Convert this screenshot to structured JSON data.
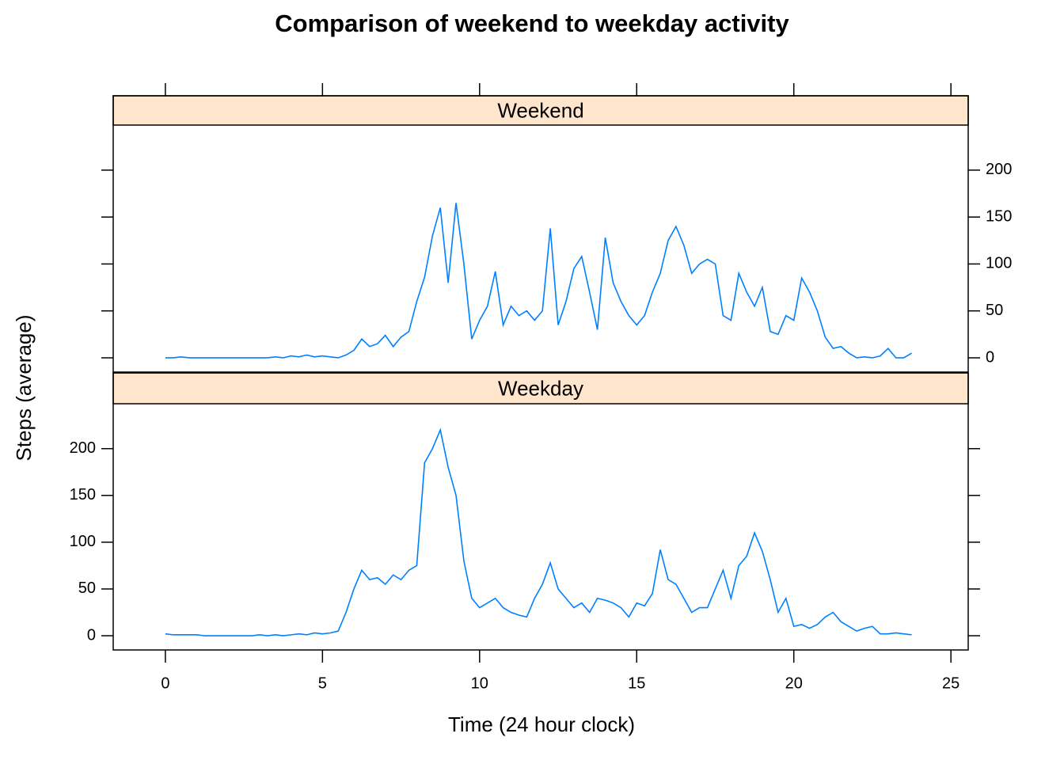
{
  "chart_data": {
    "type": "line",
    "title": "Comparison of weekend to weekday activity",
    "xlabel": "Time (24 hour clock)",
    "ylabel": "Steps (average)",
    "xlim": [
      -1.66,
      25.55
    ],
    "xticks": [
      0,
      5,
      10,
      15,
      20,
      25
    ],
    "ylim": [
      -15.2,
      248
    ],
    "yticks": [
      0,
      50,
      100,
      150,
      200
    ],
    "x": [
      0,
      0.25,
      0.5,
      0.75,
      1,
      1.25,
      1.5,
      1.75,
      2,
      2.25,
      2.5,
      2.75,
      3,
      3.25,
      3.5,
      3.75,
      4,
      4.25,
      4.5,
      4.75,
      5,
      5.25,
      5.5,
      5.75,
      6,
      6.25,
      6.5,
      6.75,
      7,
      7.25,
      7.5,
      7.75,
      8,
      8.25,
      8.5,
      8.75,
      9,
      9.25,
      9.5,
      9.75,
      10,
      10.25,
      10.5,
      10.75,
      11,
      11.25,
      11.5,
      11.75,
      12,
      12.25,
      12.5,
      12.75,
      13,
      13.25,
      13.5,
      13.75,
      14,
      14.25,
      14.5,
      14.75,
      15,
      15.25,
      15.5,
      15.75,
      16,
      16.25,
      16.5,
      16.75,
      17,
      17.25,
      17.5,
      17.75,
      18,
      18.25,
      18.5,
      18.75,
      19,
      19.25,
      19.5,
      19.75,
      20,
      20.25,
      20.5,
      20.75,
      21,
      21.25,
      21.5,
      21.75,
      22,
      22.25,
      22.5,
      22.75,
      23,
      23.25,
      23.5,
      23.75
    ],
    "series": [
      {
        "name": "Weekend",
        "color": "#0080ff",
        "values": [
          0,
          0,
          1,
          0,
          0,
          0,
          0,
          0,
          0,
          0,
          0,
          0,
          0,
          0,
          1,
          0,
          2,
          1,
          3,
          1,
          2,
          1,
          0,
          3,
          8,
          20,
          12,
          15,
          24,
          12,
          22,
          28,
          60,
          86,
          130,
          160,
          80,
          165,
          100,
          20,
          40,
          55,
          92,
          35,
          55,
          45,
          50,
          40,
          50,
          138,
          35,
          60,
          95,
          108,
          70,
          30,
          128,
          80,
          60,
          45,
          35,
          45,
          70,
          90,
          125,
          140,
          120,
          90,
          100,
          105,
          100,
          45,
          40,
          90,
          70,
          55,
          75,
          28,
          25,
          45,
          40,
          85,
          70,
          50,
          22,
          10,
          12,
          5,
          0,
          1,
          0,
          2,
          10,
          0,
          0,
          5
        ]
      },
      {
        "name": "Weekday",
        "color": "#0080ff",
        "values": [
          2,
          1,
          1,
          1,
          1,
          0,
          0,
          0,
          0,
          0,
          0,
          0,
          1,
          0,
          1,
          0,
          1,
          2,
          1,
          3,
          2,
          3,
          5,
          25,
          50,
          70,
          60,
          62,
          55,
          65,
          60,
          70,
          75,
          185,
          200,
          220,
          180,
          150,
          80,
          40,
          30,
          35,
          40,
          30,
          25,
          22,
          20,
          40,
          55,
          78,
          50,
          40,
          30,
          35,
          25,
          40,
          38,
          35,
          30,
          20,
          35,
          32,
          45,
          92,
          60,
          55,
          40,
          25,
          30,
          30,
          50,
          70,
          40,
          75,
          85,
          110,
          90,
          60,
          25,
          40,
          10,
          12,
          8,
          12,
          20,
          25,
          15,
          10,
          5,
          8,
          10,
          2,
          2,
          3,
          2,
          1
        ]
      }
    ]
  }
}
